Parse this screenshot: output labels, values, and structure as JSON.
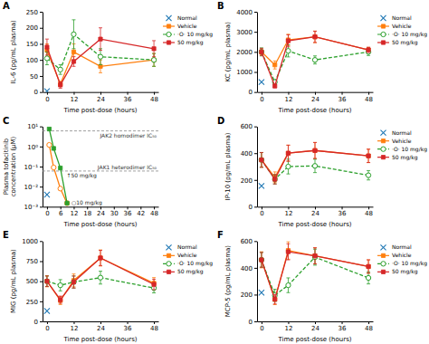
{
  "chart_data": [
    {
      "type": "line",
      "title": "A",
      "x_label": "Time post-dose (hours)",
      "y_label": "IL-6 (pg/mL plasma)",
      "xlim": [
        -2,
        50
      ],
      "ylim": [
        0,
        250
      ],
      "xticks": [
        0,
        12,
        24,
        36,
        48
      ],
      "yticks": [
        0,
        50,
        100,
        150,
        200,
        250
      ],
      "grid": false,
      "legend": "upper right",
      "series": [
        {
          "name": "Normal",
          "x": [
            0
          ],
          "values": [
            3
          ],
          "marker": "x",
          "line_style": "none"
        },
        {
          "name": "Vehicle",
          "x": [
            0,
            6,
            12,
            24,
            48
          ],
          "values": [
            130,
            25,
            125,
            80,
            100
          ],
          "errors": [
            20,
            8,
            25,
            20,
            20
          ],
          "marker": "square",
          "line_style": "solid"
        },
        {
          "name": "·O· 10 mg/kg",
          "x": [
            0,
            6,
            12,
            24,
            48
          ],
          "values": [
            105,
            70,
            180,
            110,
            100
          ],
          "errors": [
            20,
            15,
            45,
            25,
            20
          ],
          "marker": "circle",
          "line_style": "dashed"
        },
        {
          "name": "50 mg/kg",
          "x": [
            0,
            6,
            12,
            24,
            48
          ],
          "values": [
            140,
            22,
            95,
            165,
            135
          ],
          "errors": [
            25,
            10,
            15,
            35,
            25
          ],
          "marker": "square",
          "line_style": "solid"
        }
      ]
    },
    {
      "type": "line",
      "title": "B",
      "x_label": "Time post-dose (hours)",
      "y_label": "KC (pg/mL plasma)",
      "xlim": [
        -2,
        50
      ],
      "ylim": [
        0,
        4000
      ],
      "xticks": [
        0,
        12,
        24,
        36,
        48
      ],
      "yticks": [
        0,
        1000,
        2000,
        3000,
        4000
      ],
      "grid": false,
      "legend": "upper right",
      "series": [
        {
          "name": "Normal",
          "x": [
            0
          ],
          "values": [
            500
          ],
          "marker": "x",
          "line_style": "none"
        },
        {
          "name": "Vehicle",
          "x": [
            0,
            6,
            12,
            24,
            48
          ],
          "values": [
            2000,
            1350,
            2600,
            2750,
            2100
          ],
          "errors": [
            150,
            200,
            280,
            290,
            130
          ],
          "marker": "square",
          "line_style": "solid"
        },
        {
          "name": "·O· 10 mg/kg",
          "x": [
            0,
            6,
            12,
            24,
            48
          ],
          "values": [
            2000,
            500,
            2050,
            1600,
            2000
          ],
          "errors": [
            200,
            100,
            300,
            200,
            180
          ],
          "marker": "circle",
          "line_style": "dashed"
        },
        {
          "name": "50 mg/kg",
          "x": [
            0,
            6,
            12,
            24,
            48
          ],
          "values": [
            2000,
            300,
            2550,
            2750,
            2100
          ],
          "errors": [
            180,
            80,
            300,
            280,
            130
          ],
          "marker": "square",
          "line_style": "solid"
        }
      ]
    },
    {
      "type": "line",
      "title": "C",
      "x_label": "Time post-dose (hours)",
      "y_label": "Plasma tofacitinib\nconcentration (μM)",
      "log": "y",
      "xlim": [
        -2,
        50
      ],
      "ylim": [
        0.001,
        10
      ],
      "xticks": [
        0,
        6,
        12,
        18,
        24,
        30,
        36,
        42,
        48
      ],
      "yticks": [
        {
          "value": 0.001,
          "label": "10⁻³"
        },
        {
          "value": 0.01,
          "label": "10⁻²"
        },
        {
          "value": 0.1,
          "label": "10⁻¹"
        },
        {
          "value": 1,
          "label": "10⁰"
        },
        {
          "value": 10,
          "label": "10¹"
        }
      ],
      "grid": false,
      "reference_lines": [
        {
          "value": 6.0,
          "label": "JAK2 homodimer IC₅₀"
        },
        {
          "value": 0.06,
          "label": "JAK1 heterodimer IC₅₀"
        }
      ],
      "annotations": [
        {
          "text": "↑50 mg/kg",
          "x": 7.5,
          "y": 0.028
        },
        {
          "text": "○10 mg/kg",
          "x": 9.8,
          "y": 0.0013
        }
      ],
      "series": [
        {
          "x": [
            0
          ],
          "values": [
            0.004
          ],
          "marker": "x",
          "line_style": "none"
        },
        {
          "x": [
            1,
            3,
            6,
            9
          ],
          "values": [
            1.2,
            0.09,
            0.008,
            0.0015
          ],
          "marker": "circle",
          "line_style": "solid"
        },
        {
          "x": [
            1,
            3,
            6,
            9
          ],
          "values": [
            7.5,
            0.8,
            0.085,
            0.0015
          ],
          "marker": "square",
          "line_style": "solid"
        }
      ]
    },
    {
      "type": "line",
      "title": "D",
      "x_label": "Time post-dose (hours)",
      "y_label": "IP-10 (pg/mL plasma)",
      "xlim": [
        -2,
        50
      ],
      "ylim": [
        0,
        600
      ],
      "xticks": [
        0,
        12,
        24,
        36,
        48
      ],
      "yticks": [
        0,
        200,
        400,
        600
      ],
      "grid": false,
      "legend": "upper right",
      "series": [
        {
          "name": "Normal",
          "x": [
            0
          ],
          "values": [
            155
          ],
          "marker": "x",
          "line_style": "none"
        },
        {
          "name": "Vehicle",
          "x": [
            0,
            6,
            12,
            24,
            48
          ],
          "values": [
            350,
            220,
            400,
            420,
            380
          ],
          "errors": [
            55,
            40,
            60,
            60,
            50
          ],
          "marker": "square",
          "line_style": "solid"
        },
        {
          "name": "·O· 10 mg/kg",
          "x": [
            0,
            6,
            12,
            24,
            48
          ],
          "values": [
            350,
            205,
            300,
            305,
            235
          ],
          "errors": [
            55,
            35,
            55,
            50,
            35
          ],
          "marker": "circle",
          "line_style": "dashed"
        },
        {
          "name": "50 mg/kg",
          "x": [
            0,
            6,
            12,
            24,
            48
          ],
          "values": [
            350,
            205,
            400,
            420,
            380
          ],
          "errors": [
            55,
            35,
            60,
            60,
            50
          ],
          "marker": "square",
          "line_style": "solid"
        }
      ]
    },
    {
      "type": "line",
      "title": "E",
      "x_label": "Time post-dose (hours)",
      "y_label": "MIG (pg/mL plasma)",
      "xlim": [
        -2,
        50
      ],
      "ylim": [
        0,
        1000
      ],
      "xticks": [
        0,
        12,
        24,
        36,
        48
      ],
      "yticks": [
        0,
        250,
        500,
        750,
        1000
      ],
      "grid": false,
      "legend": "upper right",
      "series": [
        {
          "name": "Normal",
          "x": [
            0
          ],
          "values": [
            130
          ],
          "marker": "x",
          "line_style": "none"
        },
        {
          "name": "Vehicle",
          "x": [
            0,
            6,
            12,
            24,
            48
          ],
          "values": [
            500,
            260,
            510,
            790,
            475
          ],
          "errors": [
            70,
            50,
            80,
            100,
            70
          ],
          "marker": "square",
          "line_style": "solid"
        },
        {
          "name": "·O· 10 mg/kg",
          "x": [
            0,
            6,
            12,
            24,
            48
          ],
          "values": [
            500,
            450,
            490,
            545,
            415
          ],
          "errors": [
            65,
            70,
            75,
            80,
            60
          ],
          "marker": "circle",
          "line_style": "dashed"
        },
        {
          "name": "50 mg/kg",
          "x": [
            0,
            6,
            12,
            24,
            48
          ],
          "values": [
            500,
            270,
            490,
            790,
            460
          ],
          "errors": [
            65,
            45,
            75,
            95,
            65
          ],
          "marker": "square",
          "line_style": "solid"
        }
      ]
    },
    {
      "type": "line",
      "title": "F",
      "x_label": "Time post-dose (hours)",
      "y_label": "MCP-5 (pg/mL plasma)",
      "xlim": [
        -2,
        50
      ],
      "ylim": [
        0,
        600
      ],
      "xticks": [
        0,
        12,
        24,
        36,
        48
      ],
      "yticks": [
        0,
        200,
        400,
        600
      ],
      "grid": false,
      "legend": "upper right",
      "series": [
        {
          "name": "Normal",
          "x": [
            0
          ],
          "values": [
            215
          ],
          "marker": "x",
          "line_style": "none"
        },
        {
          "name": "Vehicle",
          "x": [
            0,
            6,
            12,
            24,
            48
          ],
          "values": [
            460,
            165,
            530,
            490,
            410
          ],
          "errors": [
            60,
            40,
            65,
            60,
            50
          ],
          "marker": "square",
          "line_style": "solid"
        },
        {
          "name": "·O· 10 mg/kg",
          "x": [
            0,
            6,
            12,
            24,
            48
          ],
          "values": [
            460,
            195,
            270,
            480,
            325
          ],
          "errors": [
            55,
            45,
            55,
            60,
            45
          ],
          "marker": "circle",
          "line_style": "dashed"
        },
        {
          "name": "50 mg/kg",
          "x": [
            0,
            6,
            12,
            24,
            48
          ],
          "values": [
            460,
            165,
            520,
            490,
            410
          ],
          "errors": [
            55,
            35,
            60,
            60,
            50
          ],
          "marker": "square",
          "line_style": "solid"
        }
      ]
    }
  ]
}
